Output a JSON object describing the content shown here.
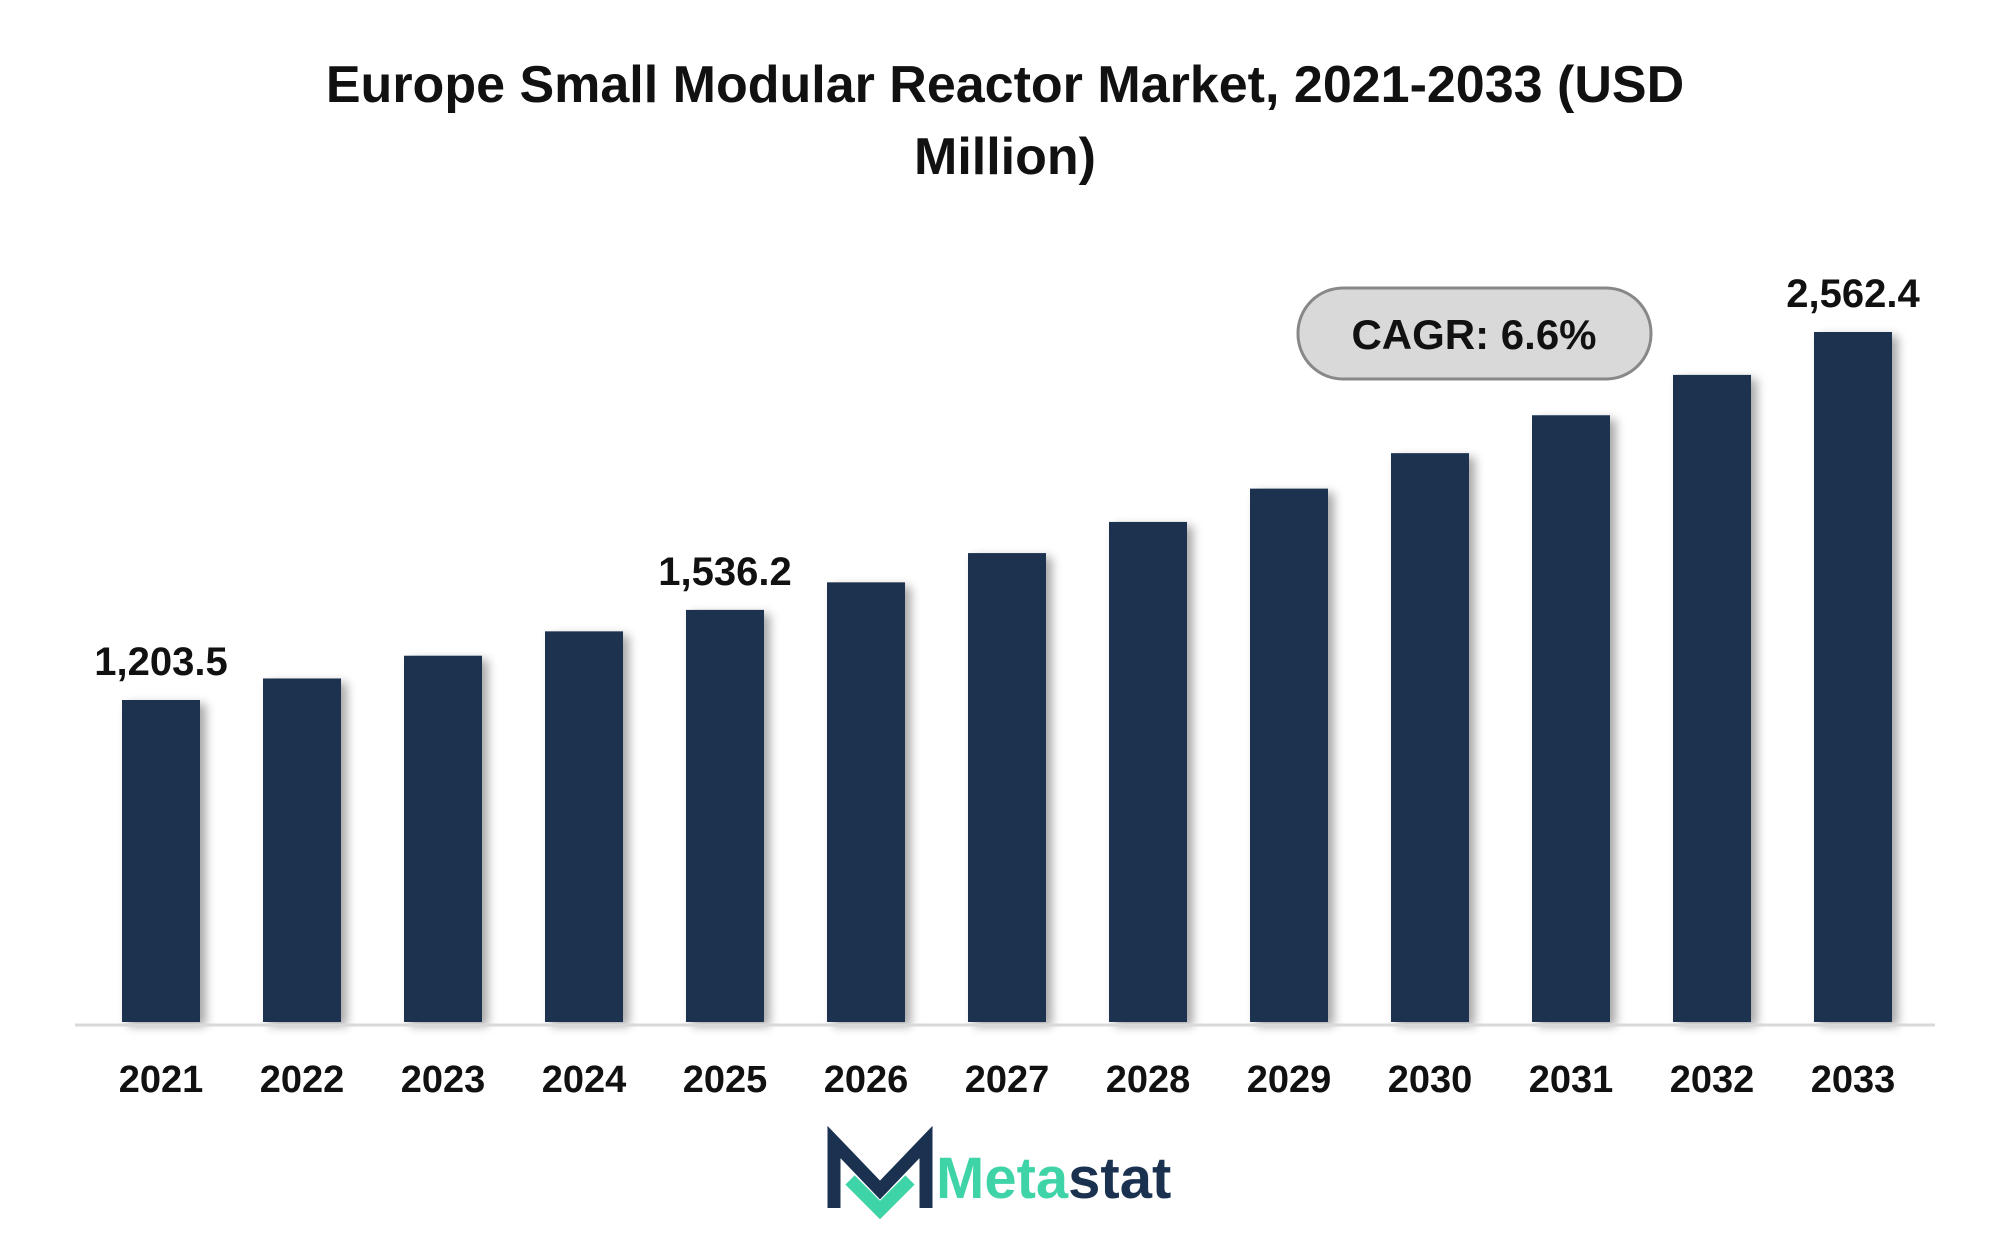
{
  "chart_data": {
    "type": "bar",
    "title": "Europe Small Modular Reactor Market, 2021-2033 (USD Million)",
    "title_lines": [
      "Europe Small Modular Reactor Market, 2021-2033 (USD",
      "Million)"
    ],
    "categories": [
      "2021",
      "2022",
      "2023",
      "2024",
      "2025",
      "2026",
      "2027",
      "2028",
      "2029",
      "2030",
      "2031",
      "2032",
      "2033"
    ],
    "values": [
      1203.5,
      1283,
      1367,
      1457,
      1536.2,
      1638,
      1746,
      1861,
      1984,
      2115,
      2255,
      2404,
      2562.4
    ],
    "data_labels": [
      {
        "category": "2021",
        "text": "1,203.5"
      },
      {
        "category": "2025",
        "text": "1,536.2"
      },
      {
        "category": "2033",
        "text": "2,562.4"
      }
    ],
    "ylim": [
      0,
      2800
    ],
    "grid": false,
    "bar_color": "#1a3150",
    "baseline_color": "#d9d9d9"
  },
  "annotation": {
    "cagr_label": "CAGR: 6.6%",
    "fill": "#d9d9d9",
    "stroke": "#888888"
  },
  "logo": {
    "text_part1": "Meta",
    "text_part2": "stat",
    "color_part1": "#3fd4a8",
    "color_part2": "#1a3150"
  }
}
